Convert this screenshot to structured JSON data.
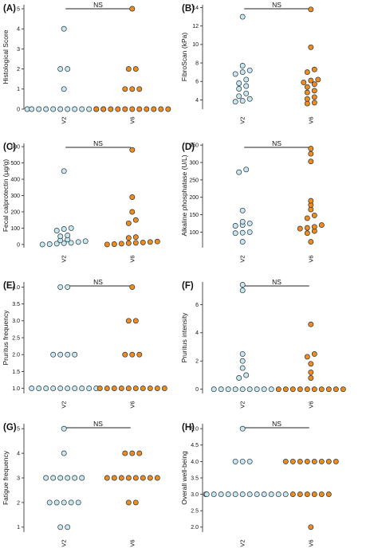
{
  "colors": {
    "V2": "#c9e7ee",
    "V6": "#f08c1e",
    "stroke": "#1f2f3a"
  },
  "categories": [
    "V2",
    "V6"
  ],
  "chart_data": [
    {
      "panel": "(A)",
      "type": "scatter",
      "ylabel": "Histological Score",
      "ylim": [
        0,
        5.2
      ],
      "yticks": [
        "0",
        "1",
        "2",
        "3",
        "4",
        "5"
      ],
      "ytick_vals": [
        0,
        1,
        2,
        3,
        4,
        5
      ],
      "annotation": "NS",
      "series": [
        {
          "group": "V2",
          "values": [
            0,
            0,
            0,
            0,
            0,
            0,
            0,
            0,
            0,
            0,
            0,
            0,
            1,
            2,
            2,
            4
          ]
        },
        {
          "group": "V6",
          "values": [
            0,
            0,
            0,
            0,
            0,
            0,
            0,
            0,
            0,
            0,
            0,
            1,
            1,
            1,
            2,
            2,
            5
          ]
        }
      ]
    },
    {
      "panel": "(B)",
      "type": "scatter",
      "ylabel": "FibroScan (kPa)",
      "ylim": [
        3,
        14.3
      ],
      "yticks": [
        "4",
        "6",
        "8",
        "10",
        "12",
        "14"
      ],
      "ytick_vals": [
        4,
        6,
        8,
        10,
        12,
        14
      ],
      "annotation": "NS",
      "series": [
        {
          "group": "V2",
          "values": [
            3.8,
            3.9,
            4.1,
            4.4,
            4.7,
            5.2,
            5.5,
            5.8,
            6.2,
            6.8,
            7.0,
            7.2,
            7.7,
            13.0
          ]
        },
        {
          "group": "V6",
          "values": [
            3.6,
            3.7,
            4.1,
            4.3,
            4.8,
            5.0,
            5.4,
            5.7,
            5.9,
            6.1,
            6.2,
            7.0,
            7.3,
            9.7,
            13.8
          ]
        }
      ]
    },
    {
      "panel": "(C)",
      "type": "scatter",
      "ylabel": "Fecal calprotectin (µg/g)",
      "ylim": [
        -20,
        620
      ],
      "yticks": [
        "0",
        "100",
        "200",
        "300",
        "400",
        "500",
        "600"
      ],
      "ytick_vals": [
        0,
        100,
        200,
        300,
        400,
        500,
        600
      ],
      "annotation": "NS",
      "series": [
        {
          "group": "V2",
          "values": [
            0,
            2,
            5,
            8,
            10,
            15,
            20,
            25,
            30,
            50,
            55,
            85,
            95,
            100,
            450
          ]
        },
        {
          "group": "V6",
          "values": [
            0,
            2,
            5,
            8,
            10,
            12,
            15,
            18,
            40,
            45,
            130,
            150,
            200,
            290,
            580
          ]
        }
      ]
    },
    {
      "panel": "(D)",
      "type": "scatter",
      "ylabel": "Alkaline phosphatase (U/L)",
      "ylim": [
        55,
        355
      ],
      "yticks": [
        "100",
        "150",
        "200",
        "250",
        "300",
        "350"
      ],
      "ytick_vals": [
        100,
        150,
        200,
        250,
        300,
        350
      ],
      "annotation": "NS",
      "series": [
        {
          "group": "V2",
          "values": [
            72,
            97,
            98,
            100,
            118,
            120,
            125,
            130,
            162,
            272,
            280
          ]
        },
        {
          "group": "V6",
          "values": [
            72,
            97,
            103,
            110,
            112,
            115,
            120,
            140,
            148,
            165,
            178,
            190,
            303,
            325,
            340
          ]
        }
      ]
    },
    {
      "panel": "(E)",
      "type": "scatter",
      "ylabel": "Pruritus frequency",
      "ylim": [
        0.85,
        4.15
      ],
      "yticks": [
        "1.0",
        "1.5",
        "2.0",
        "2.5",
        "3.0",
        "3.5",
        "4.0"
      ],
      "ytick_vals": [
        1,
        1.5,
        2,
        2.5,
        3,
        3.5,
        4
      ],
      "annotation": "NS",
      "series": [
        {
          "group": "V2",
          "values": [
            1,
            1,
            1,
            1,
            1,
            1,
            1,
            1,
            1,
            1,
            2,
            2,
            2,
            2,
            4,
            4
          ]
        },
        {
          "group": "V6",
          "values": [
            1,
            1,
            1,
            1,
            1,
            1,
            1,
            1,
            1,
            1,
            2,
            2,
            2,
            3,
            3,
            4
          ]
        }
      ]
    },
    {
      "panel": "(F)",
      "type": "scatter",
      "ylabel": "Pruritus intensity",
      "ylim": [
        -0.3,
        7.6
      ],
      "yticks": [
        "0",
        "2",
        "4",
        "6"
      ],
      "ytick_vals": [
        0,
        2,
        4,
        6
      ],
      "annotation": "NS",
      "series": [
        {
          "group": "V2",
          "values": [
            0,
            0,
            0,
            0,
            0,
            0,
            0,
            0,
            0,
            0.8,
            1.0,
            1.5,
            2.0,
            2.5,
            7.0,
            7.4
          ]
        },
        {
          "group": "V6",
          "values": [
            0,
            0,
            0,
            0,
            0,
            0,
            0,
            0,
            0,
            0,
            0.8,
            1.2,
            1.8,
            2.3,
            2.5,
            4.6
          ]
        }
      ]
    },
    {
      "panel": "(G)",
      "type": "scatter",
      "ylabel": "Fatigue frequency",
      "ylim": [
        0.8,
        5.2
      ],
      "yticks": [
        "1",
        "2",
        "3",
        "4",
        "5"
      ],
      "ytick_vals": [
        1,
        2,
        3,
        4,
        5
      ],
      "annotation": "NS",
      "series": [
        {
          "group": "V2",
          "values": [
            1,
            1,
            2,
            2,
            2,
            2,
            2,
            3,
            3,
            3,
            3,
            3,
            3,
            4,
            5
          ]
        },
        {
          "group": "V6",
          "values": [
            2,
            2,
            3,
            3,
            3,
            3,
            3,
            3,
            3,
            3,
            4,
            4,
            4
          ]
        }
      ]
    },
    {
      "panel": "(H)",
      "type": "scatter",
      "ylabel": "Overall well-being",
      "ylim": [
        1.85,
        5.15
      ],
      "yticks": [
        "2.0",
        "2.5",
        "3.0",
        "3.5",
        "4.0",
        "4.5",
        "5.0"
      ],
      "ytick_vals": [
        2,
        2.5,
        3,
        3.5,
        4,
        4.5,
        5
      ],
      "annotation": "NS",
      "series": [
        {
          "group": "V2",
          "values": [
            3,
            3,
            3,
            3,
            3,
            3,
            3,
            3,
            3,
            3,
            3,
            3,
            3,
            4,
            4,
            4,
            5
          ]
        },
        {
          "group": "V6",
          "values": [
            2,
            3,
            3,
            3,
            3,
            3,
            3,
            4,
            4,
            4,
            4,
            4,
            4,
            4,
            4
          ]
        }
      ]
    }
  ]
}
